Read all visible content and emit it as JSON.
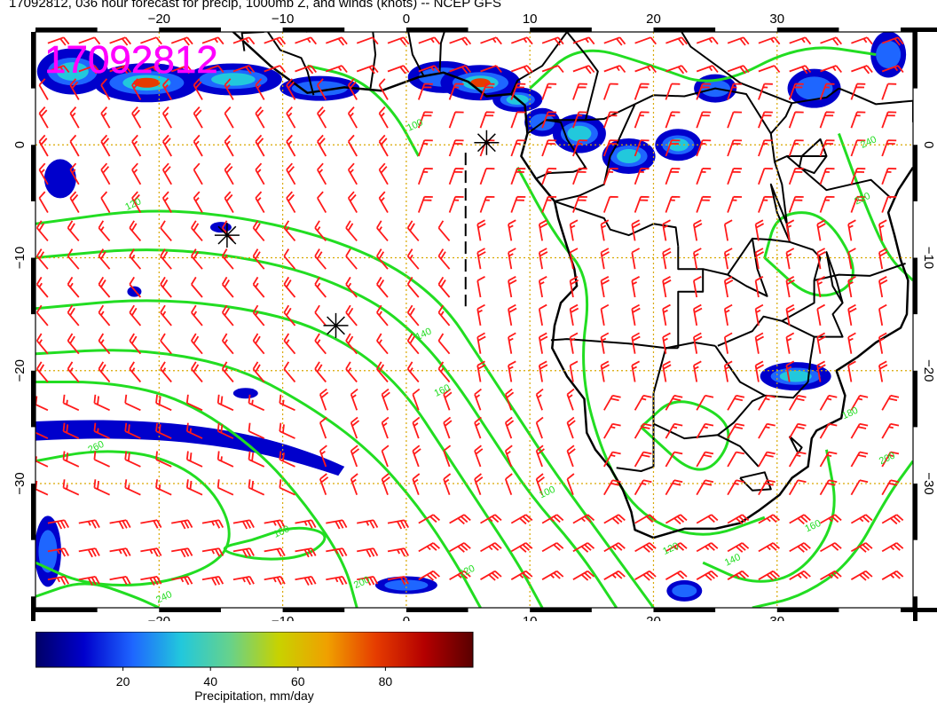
{
  "title": "17092812, 036 hour forecast for precip, 1000mb Z, and winds (knots) -- NCEP GFS",
  "date_stamp": "17092812",
  "map": {
    "lon_range": [
      -30,
      41
    ],
    "lat_range": [
      -41,
      10
    ],
    "lon_ticks": [
      -20,
      -10,
      0,
      10,
      20,
      30
    ],
    "lat_ticks": [
      0,
      -10,
      -20,
      -30
    ],
    "lon_tick_labels": [
      "−20",
      "−10",
      "0",
      "10",
      "20",
      "30"
    ],
    "lat_tick_labels": [
      "0",
      "−10",
      "−20",
      "−30"
    ],
    "grid": "dotted",
    "colors": {
      "contour": "#22dd22",
      "wind_barb": "#ff1a1a",
      "coast": "#000000",
      "grid": "#d9a800",
      "stamp": "#ff00ff"
    },
    "contour_labels": [
      "100",
      "120",
      "140",
      "160",
      "180",
      "200",
      "220",
      "240",
      "260"
    ],
    "markers": [
      {
        "name": "asterisk",
        "lon": 6.5,
        "lat": 0.2
      },
      {
        "name": "asterisk",
        "lon": -14.5,
        "lat": -8.0
      },
      {
        "name": "asterisk",
        "lon": -5.7,
        "lat": -16.0
      }
    ]
  },
  "colorbar": {
    "range": [
      0,
      100
    ],
    "ticks": [
      "20",
      "40",
      "60",
      "80"
    ],
    "tick_values": [
      20,
      40,
      60,
      80
    ],
    "label": "Precipitation, mm/day",
    "colors": [
      "#000066",
      "#0000cc",
      "#1e66ff",
      "#22c8dc",
      "#66d28c",
      "#c8d200",
      "#f0a000",
      "#e63c00",
      "#b40000",
      "#5a0000"
    ]
  }
}
